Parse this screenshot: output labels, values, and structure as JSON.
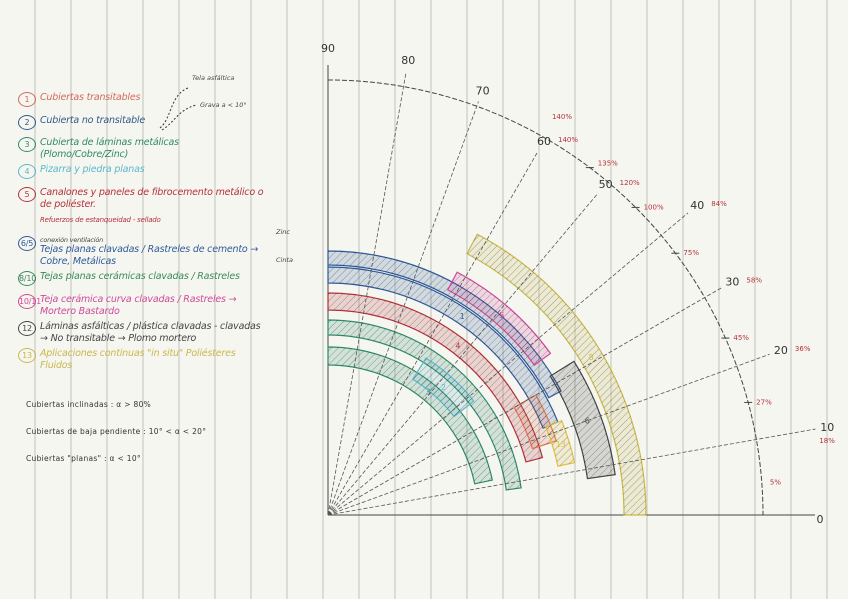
{
  "legend": {
    "items": [
      {
        "num": "1",
        "text": "Cubiertas transitables",
        "color": "#d2695a"
      },
      {
        "num": "2",
        "text": "Cubierta no transitable",
        "color": "#2f5a8a"
      },
      {
        "num": "3",
        "text": "Cubierta de láminas metálicas (Plomo/Cobre/Zinc)",
        "color": "#2f8a6a"
      },
      {
        "num": "4",
        "text": "Pizarra y piedra planas",
        "color": "#5ab8c8"
      },
      {
        "num": "5",
        "text": "Canalones y paneles de fibrocemento metálico o de poliéster.",
        "color": "#b5303a"
      },
      {
        "num": "",
        "text": "Refuerzos de estanqueidad - sellado",
        "color": "#b5303a"
      },
      {
        "num": "6/5",
        "text": "Tejas planas clavadas / Rastreles de cemento → Cobre, Metálicas",
        "color": "#2f5a9a"
      },
      {
        "num": "8/10",
        "text": "Tejas planas cerámicas clavadas / Rastreles",
        "color": "#3a8a5a"
      },
      {
        "num": "10/11",
        "text": "Teja cerámica curva clavadas / Rastreles → Mortero Bastardo",
        "color": "#d04a9a"
      },
      {
        "num": "12",
        "text": "Láminas asfálticas / plástica clavadas - clavadas → No transitable → Plomo mortero",
        "color": "#444444"
      },
      {
        "num": "13",
        "text": "Aplicaciones continuas \"in situ\" Poliésteres Fluidos",
        "color": "#c8b84a"
      }
    ],
    "annot_top": "Tela asfáltica",
    "annot_bottom": "Grava a < 10°",
    "annot_over": "conexión ventilación",
    "annot_right_top": "Zinc",
    "annot_right_bottom": "Cinta"
  },
  "notes": [
    "Cubiertas inclinadas : α > 80%",
    "Cubiertas de baja pendiente : 10° < α < 20°",
    "Cubiertas \"planas\" : α < 10°"
  ],
  "diagram": {
    "angle_labels": [
      "0",
      "10",
      "20",
      "30",
      "40",
      "50",
      "60",
      "70",
      "80",
      "90"
    ],
    "pct_labels": [
      "5%",
      "18%",
      "36%",
      "58%",
      "84%",
      "120%",
      "140%"
    ],
    "arc_ticks": [
      "27%",
      "45%",
      "75%",
      "100%",
      "135%"
    ],
    "band_numbers": [
      "1",
      "2",
      "3",
      "4",
      "5",
      "6",
      "8",
      "13"
    ]
  }
}
